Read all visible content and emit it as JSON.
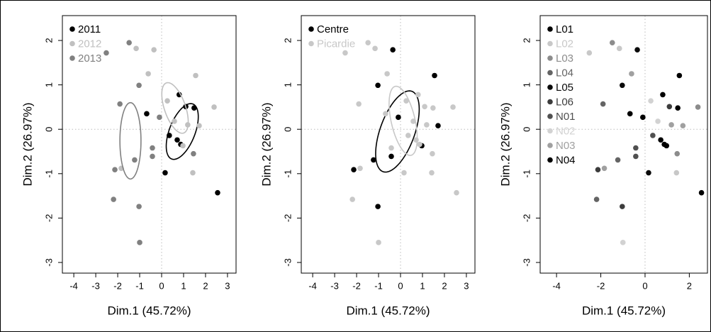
{
  "chart_data": [
    {
      "type": "scatter",
      "xlabel": "Dim.1 (45.72%)",
      "ylabel": "Dim.2 (26.97%)",
      "xlim": [
        -4.52,
        3.39
      ],
      "ylim": [
        -3.24,
        2.56
      ],
      "xticks": [
        -4,
        -3,
        -2,
        -1,
        0,
        1,
        2,
        3
      ],
      "yticks": [
        -3,
        -2,
        -1,
        0,
        1,
        2
      ],
      "hline": 0,
      "vline": 0,
      "legend": "top-left",
      "series": [
        {
          "name": "2011",
          "color": "#000000",
          "x": [
            -0.68,
            0.8,
            1.1,
            1.48,
            0.35,
            0.71,
            0.87,
            0.16,
            2.55
          ],
          "values": [
            0.35,
            0.78,
            0.51,
            0.48,
            -0.14,
            -0.24,
            -0.34,
            -0.98,
            -1.43
          ],
          "ellipse": {
            "center": [
              0.94,
              -0.05
            ],
            "axes": [
              [
                0.48,
                0.62
              ],
              [
                0.55,
                -0.1
              ]
            ]
          }
        },
        {
          "name": "2012",
          "color": "#c0c0c0",
          "x": [
            -1.16,
            -0.35,
            -0.61,
            1.55,
            2.39,
            0.26,
            0.58,
            1.19,
            1.71,
            0.97,
            1.42,
            -1.84
          ],
          "values": [
            1.82,
            1.79,
            1.25,
            1.21,
            0.5,
            0.64,
            0.18,
            0.1,
            0.08,
            -0.37,
            -0.98,
            -0.88
          ],
          "ellipse": {
            "center": [
              0.61,
              0.48
            ],
            "axes": [
              [
                -0.45,
                0.55
              ],
              [
                0.4,
                0.15
              ]
            ]
          }
        },
        {
          "name": "2013",
          "color": "#808080",
          "x": [
            -2.52,
            -1.48,
            -1.9,
            -1.03,
            -0.1,
            -0.42,
            -0.42,
            -1.23,
            -2.13,
            -2.19,
            -1.03,
            -1.0,
            1.45
          ],
          "values": [
            1.72,
            1.95,
            0.57,
            0.99,
            0.27,
            -0.42,
            -0.61,
            -0.69,
            -0.91,
            -1.58,
            -1.74,
            -2.55,
            -0.55
          ],
          "ellipse": {
            "center": [
              -1.42,
              -0.26
            ],
            "axes": [
              [
                0,
                0.86
              ],
              [
                0.48,
                0
              ]
            ]
          }
        }
      ]
    },
    {
      "type": "scatter",
      "xlabel": "Dim.1 (45.72%)",
      "ylabel": "Dim.2 (26.97%)",
      "xlim": [
        -4.52,
        3.39
      ],
      "ylim": [
        -3.24,
        2.56
      ],
      "xticks": [
        -4,
        -3,
        -2,
        -1,
        0,
        1,
        2,
        3
      ],
      "yticks": [
        -3,
        -2,
        -1,
        0,
        1,
        2
      ],
      "hline": 0,
      "vline": 0,
      "legend": "top-left",
      "series": [
        {
          "name": "Centre",
          "color": "#000000",
          "x": [
            -0.35,
            -1.03,
            1.55,
            -0.1,
            1.71,
            0.97,
            -1.23,
            -0.42,
            -2.13,
            -1.03
          ],
          "values": [
            1.79,
            0.99,
            1.21,
            0.27,
            0.08,
            -0.37,
            -0.69,
            -0.61,
            -0.91,
            -1.74
          ],
          "ellipse": {
            "center": [
              -0.14,
              -0.05
            ],
            "axes": [
              [
                0.75,
                0.88
              ],
              [
                0.65,
                -0.25
              ]
            ]
          }
        },
        {
          "name": "Picardie",
          "color": "#c8c8c8",
          "x": [
            -0.68,
            0.8,
            1.1,
            1.48,
            0.35,
            0.71,
            0.87,
            0.16,
            2.55,
            -1.16,
            -0.61,
            2.39,
            0.26,
            0.58,
            1.19,
            1.42,
            -1.84,
            -2.52,
            -1.48,
            -1.9,
            -0.42,
            -2.19,
            -1.0,
            1.45
          ],
          "values": [
            0.35,
            0.78,
            0.51,
            0.48,
            -0.14,
            -0.24,
            -0.34,
            -0.98,
            -1.43,
            1.82,
            1.25,
            0.5,
            0.64,
            0.18,
            0.1,
            -0.98,
            -0.88,
            1.72,
            1.95,
            0.57,
            -0.42,
            -1.58,
            -2.55,
            -0.55
          ],
          "ellipse": {
            "center": [
              0.12,
              0.19
            ],
            "axes": [
              [
                -0.4,
                0.77
              ],
              [
                0.5,
                0.12
              ]
            ]
          }
        }
      ]
    },
    {
      "type": "scatter",
      "xlabel": "Dim.1 (45.72%)",
      "ylabel": "Dim.2 (26.97%)",
      "xlim": [
        -4.74,
        2.82
      ],
      "ylim": [
        -3.24,
        2.56
      ],
      "xticks": [
        -4,
        -2,
        0,
        2
      ],
      "yticks": [
        -3,
        -2,
        -1,
        0,
        1,
        2
      ],
      "hline": 0,
      "vline": 0,
      "legend": "top-left",
      "series": [
        {
          "name": "L01",
          "color": "#000000",
          "x": [
            -0.68,
            1.55,
            1.48
          ],
          "values": [
            0.35,
            1.21,
            0.48
          ]
        },
        {
          "name": "L02",
          "color": "#c8c8c8",
          "x": [
            -1.16,
            -2.52,
            1.42
          ],
          "values": [
            1.82,
            1.72,
            -0.98
          ]
        },
        {
          "name": "L03",
          "color": "#8c8c8c",
          "x": [
            -1.48,
            2.39,
            1.45
          ],
          "values": [
            1.95,
            0.5,
            -0.55
          ]
        },
        {
          "name": "L04",
          "color": "#646464",
          "x": [
            -1.9,
            -1.23,
            -2.19
          ],
          "values": [
            0.57,
            -0.69,
            -1.58
          ]
        },
        {
          "name": "L05",
          "color": "#0a0a0a",
          "x": [
            -0.35,
            -1.03,
            0.16
          ],
          "values": [
            1.79,
            0.99,
            -0.98
          ]
        },
        {
          "name": "L06",
          "color": "#3c3c3c",
          "x": [
            1.1,
            -2.13,
            -1.03
          ],
          "values": [
            0.51,
            -0.91,
            -1.74
          ]
        },
        {
          "name": "N01",
          "color": "#505050",
          "x": [
            0.35,
            -0.42,
            -0.42
          ],
          "values": [
            -0.14,
            -0.61,
            -0.42
          ]
        },
        {
          "name": "N02",
          "color": "#d2d2d2",
          "x": [
            0.26,
            0.58,
            -1.0
          ],
          "values": [
            0.64,
            0.18,
            -2.55
          ]
        },
        {
          "name": "N03",
          "color": "#a0a0a0",
          "x": [
            -0.61,
            1.19,
            1.71,
            -1.84
          ],
          "values": [
            1.25,
            0.1,
            0.08,
            -0.88
          ]
        },
        {
          "name": "N04",
          "color": "#000000",
          "x": [
            0.8,
            0.71,
            0.87,
            0.97,
            -0.1,
            2.55
          ],
          "values": [
            0.78,
            -0.24,
            -0.34,
            -0.37,
            0.27,
            -1.43
          ]
        }
      ]
    }
  ]
}
